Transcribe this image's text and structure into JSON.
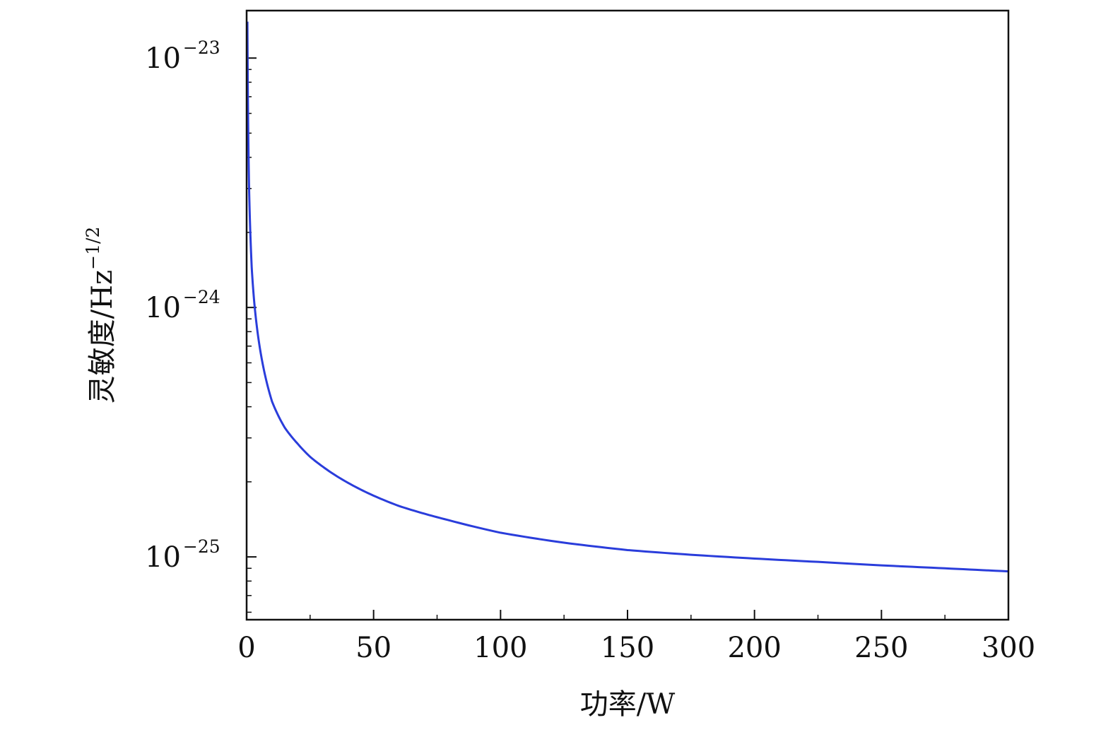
{
  "chart_data": {
    "type": "line",
    "title": "",
    "xlabel": "功率/W",
    "ylabel_main": "灵敏度/Hz",
    "ylabel_exp": "−1/2",
    "x_scale": "linear",
    "y_scale": "log",
    "xlim": [
      0,
      300
    ],
    "ylim": [
      5.6e-26,
      1.55e-23
    ],
    "x_ticks": [
      0,
      50,
      100,
      150,
      200,
      250,
      300
    ],
    "x_tick_labels": [
      "0",
      "50",
      "100",
      "150",
      "200",
      "250",
      "300"
    ],
    "y_ticks": [
      {
        "value": 1e-23,
        "base": "10",
        "exp": "−23"
      },
      {
        "value": 1e-24,
        "base": "10",
        "exp": "−24"
      },
      {
        "value": 1e-25,
        "base": "10",
        "exp": "−25"
      }
    ],
    "grid": false,
    "legend": "none",
    "line_color": "#2a3ddb",
    "series": [
      {
        "x": [
          0.3,
          0.5,
          1,
          2,
          3,
          5,
          7,
          10,
          15,
          20,
          25,
          30,
          40,
          50,
          60,
          70,
          80,
          100,
          125,
          150,
          175,
          200,
          225,
          250,
          275,
          300
        ],
        "y": [
          1.4e-23,
          6.8e-24,
          2.9e-24,
          1.45e-24,
          1.05e-24,
          7.1e-25,
          5.5e-25,
          4.2e-25,
          3.3e-25,
          2.85e-25,
          2.52e-25,
          2.3e-25,
          1.98e-25,
          1.76e-25,
          1.6e-25,
          1.49e-25,
          1.4e-25,
          1.25e-25,
          1.14e-25,
          1.065e-25,
          1.02e-25,
          9.85e-26,
          9.55e-26,
          9.25e-26,
          9e-26,
          8.75e-26
        ]
      }
    ]
  }
}
